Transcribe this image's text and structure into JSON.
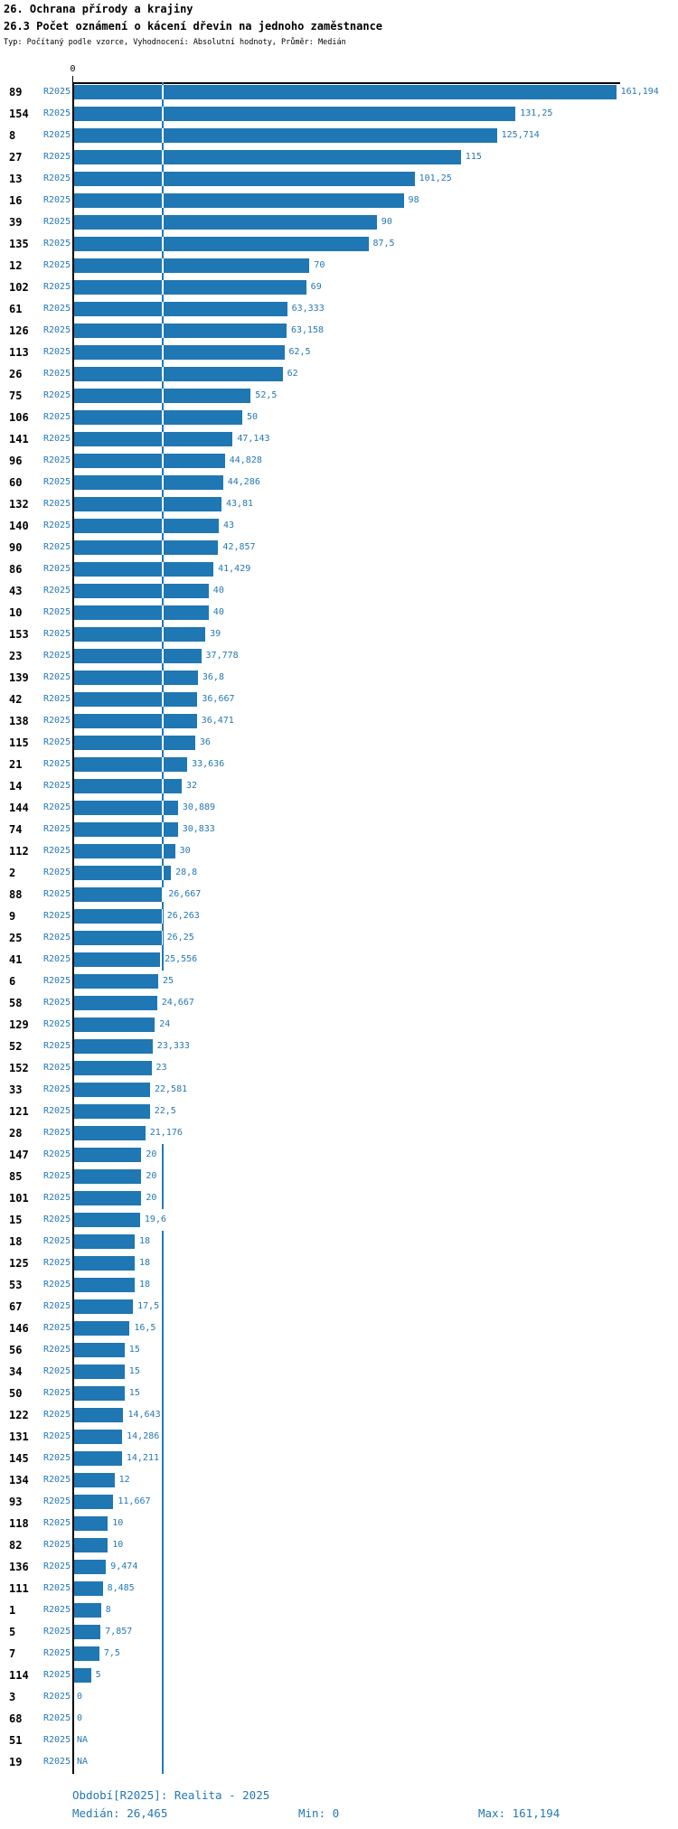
{
  "header": {
    "title1": "26. Ochrana přírody a krajiny",
    "title2": "26.3 Počet oznámení o kácení dřevin na jednoho zaměstnance",
    "meta": "Typ: Počítaný podle vzorce, Vyhodnocení: Absolutní hodnoty, Průměr: Medián"
  },
  "axis": {
    "zero_label": "0"
  },
  "footer": {
    "period_info": "Období[R2025]: Realita - 2025",
    "median_stat": "Medián: 26,465",
    "min_stat": "Min: 0",
    "max_stat": "Max: 161,194"
  },
  "colors": {
    "bar": "#1f77b4",
    "text_blue": "#2478b6",
    "axis": "#000000"
  },
  "chart_data": {
    "type": "bar",
    "orientation": "horizontal",
    "title": "26. Ochrana přírody a krajiny",
    "subtitle": "26.3 Počet oznámení o kácení dřevin na jednoho zaměstnance",
    "meta": "Typ: Počítaný podle vzorce, Vyhodnocení: Absolutní hodnoty, Průměr: Medián",
    "series_name": "R2025",
    "period": "Realita - 2025",
    "xlim": [
      0,
      165
    ],
    "x_axis_ticks": [
      "0"
    ],
    "median": 26.465,
    "min": 0,
    "max": 161.194,
    "na_label": "NA",
    "grid": false,
    "legend_position": "none",
    "rows": [
      {
        "category": "89",
        "value": 161.194,
        "label": "161,194"
      },
      {
        "category": "154",
        "value": 131.25,
        "label": "131,25"
      },
      {
        "category": "8",
        "value": 125.714,
        "label": "125,714"
      },
      {
        "category": "27",
        "value": 115,
        "label": "115"
      },
      {
        "category": "13",
        "value": 101.25,
        "label": "101,25"
      },
      {
        "category": "16",
        "value": 98,
        "label": "98"
      },
      {
        "category": "39",
        "value": 90,
        "label": "90"
      },
      {
        "category": "135",
        "value": 87.5,
        "label": "87,5"
      },
      {
        "category": "12",
        "value": 70,
        "label": "70"
      },
      {
        "category": "102",
        "value": 69,
        "label": "69"
      },
      {
        "category": "61",
        "value": 63.333,
        "label": "63,333"
      },
      {
        "category": "126",
        "value": 63.158,
        "label": "63,158"
      },
      {
        "category": "113",
        "value": 62.5,
        "label": "62,5"
      },
      {
        "category": "26",
        "value": 62,
        "label": "62"
      },
      {
        "category": "75",
        "value": 52.5,
        "label": "52,5"
      },
      {
        "category": "106",
        "value": 50,
        "label": "50"
      },
      {
        "category": "141",
        "value": 47.143,
        "label": "47,143"
      },
      {
        "category": "96",
        "value": 44.828,
        "label": "44,828"
      },
      {
        "category": "60",
        "value": 44.286,
        "label": "44,286"
      },
      {
        "category": "132",
        "value": 43.81,
        "label": "43,81"
      },
      {
        "category": "140",
        "value": 43,
        "label": "43"
      },
      {
        "category": "90",
        "value": 42.857,
        "label": "42,857"
      },
      {
        "category": "86",
        "value": 41.429,
        "label": "41,429"
      },
      {
        "category": "43",
        "value": 40,
        "label": "40"
      },
      {
        "category": "10",
        "value": 40,
        "label": "40"
      },
      {
        "category": "153",
        "value": 39,
        "label": "39"
      },
      {
        "category": "23",
        "value": 37.778,
        "label": "37,778"
      },
      {
        "category": "139",
        "value": 36.8,
        "label": "36,8"
      },
      {
        "category": "42",
        "value": 36.667,
        "label": "36,667"
      },
      {
        "category": "138",
        "value": 36.471,
        "label": "36,471"
      },
      {
        "category": "115",
        "value": 36,
        "label": "36"
      },
      {
        "category": "21",
        "value": 33.636,
        "label": "33,636"
      },
      {
        "category": "14",
        "value": 32,
        "label": "32"
      },
      {
        "category": "144",
        "value": 30.889,
        "label": "30,889"
      },
      {
        "category": "74",
        "value": 30.833,
        "label": "30,833"
      },
      {
        "category": "112",
        "value": 30,
        "label": "30"
      },
      {
        "category": "2",
        "value": 28.8,
        "label": "28,8"
      },
      {
        "category": "88",
        "value": 26.667,
        "label": "26,667"
      },
      {
        "category": "9",
        "value": 26.263,
        "label": "26,263"
      },
      {
        "category": "25",
        "value": 26.25,
        "label": "26,25"
      },
      {
        "category": "41",
        "value": 25.556,
        "label": "25,556"
      },
      {
        "category": "6",
        "value": 25,
        "label": "25"
      },
      {
        "category": "58",
        "value": 24.667,
        "label": "24,667"
      },
      {
        "category": "129",
        "value": 24,
        "label": "24"
      },
      {
        "category": "52",
        "value": 23.333,
        "label": "23,333"
      },
      {
        "category": "152",
        "value": 23,
        "label": "23"
      },
      {
        "category": "33",
        "value": 22.581,
        "label": "22,581"
      },
      {
        "category": "121",
        "value": 22.5,
        "label": "22,5"
      },
      {
        "category": "28",
        "value": 21.176,
        "label": "21,176"
      },
      {
        "category": "147",
        "value": 20,
        "label": "20"
      },
      {
        "category": "85",
        "value": 20,
        "label": "20"
      },
      {
        "category": "101",
        "value": 20,
        "label": "20"
      },
      {
        "category": "15",
        "value": 19.6,
        "label": "19,6"
      },
      {
        "category": "18",
        "value": 18,
        "label": "18"
      },
      {
        "category": "125",
        "value": 18,
        "label": "18"
      },
      {
        "category": "53",
        "value": 18,
        "label": "18"
      },
      {
        "category": "67",
        "value": 17.5,
        "label": "17,5"
      },
      {
        "category": "146",
        "value": 16.5,
        "label": "16,5"
      },
      {
        "category": "56",
        "value": 15,
        "label": "15"
      },
      {
        "category": "34",
        "value": 15,
        "label": "15"
      },
      {
        "category": "50",
        "value": 15,
        "label": "15"
      },
      {
        "category": "122",
        "value": 14.643,
        "label": "14,643"
      },
      {
        "category": "131",
        "value": 14.286,
        "label": "14,286"
      },
      {
        "category": "145",
        "value": 14.211,
        "label": "14,211"
      },
      {
        "category": "134",
        "value": 12,
        "label": "12"
      },
      {
        "category": "93",
        "value": 11.667,
        "label": "11,667"
      },
      {
        "category": "118",
        "value": 10,
        "label": "10"
      },
      {
        "category": "82",
        "value": 10,
        "label": "10"
      },
      {
        "category": "136",
        "value": 9.474,
        "label": "9,474"
      },
      {
        "category": "111",
        "value": 8.485,
        "label": "8,485"
      },
      {
        "category": "1",
        "value": 8,
        "label": "8"
      },
      {
        "category": "5",
        "value": 7.857,
        "label": "7,857"
      },
      {
        "category": "7",
        "value": 7.5,
        "label": "7,5"
      },
      {
        "category": "114",
        "value": 5,
        "label": "5"
      },
      {
        "category": "3",
        "value": 0,
        "label": "0"
      },
      {
        "category": "68",
        "value": 0,
        "label": "0"
      },
      {
        "category": "51",
        "value": null,
        "label": "NA"
      },
      {
        "category": "19",
        "value": null,
        "label": "NA"
      }
    ]
  }
}
